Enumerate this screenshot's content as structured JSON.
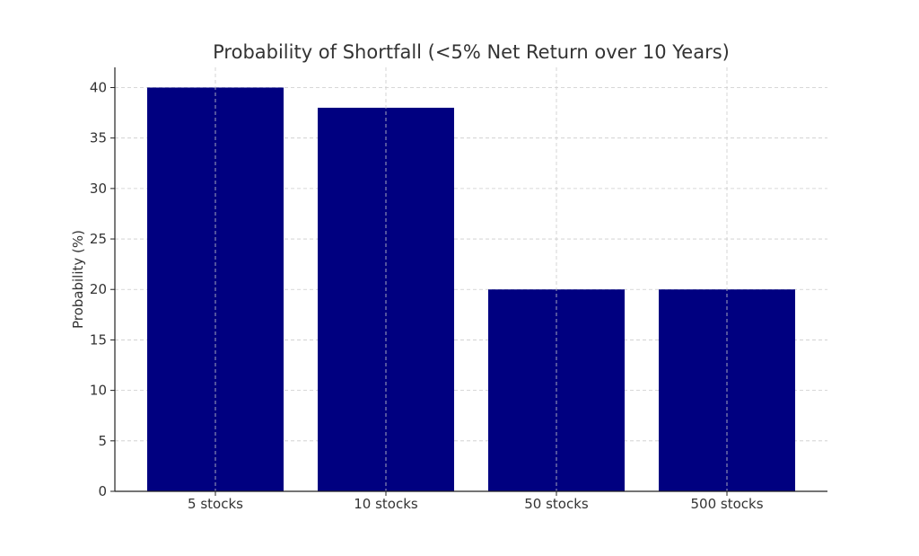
{
  "chart_data": {
    "type": "bar",
    "title": "Probability of Shortfall (<5% Net Return over 10 Years)",
    "xlabel": "",
    "ylabel": "Probability (%)",
    "categories": [
      "5 stocks",
      "10 stocks",
      "50 stocks",
      "500 stocks"
    ],
    "values": [
      40,
      38,
      20,
      20
    ],
    "ylim": [
      0,
      42
    ],
    "yticks": [
      "0",
      "5",
      "10",
      "15",
      "20",
      "25",
      "30",
      "35",
      "40"
    ],
    "grid": true,
    "bar_color": "#000080"
  }
}
